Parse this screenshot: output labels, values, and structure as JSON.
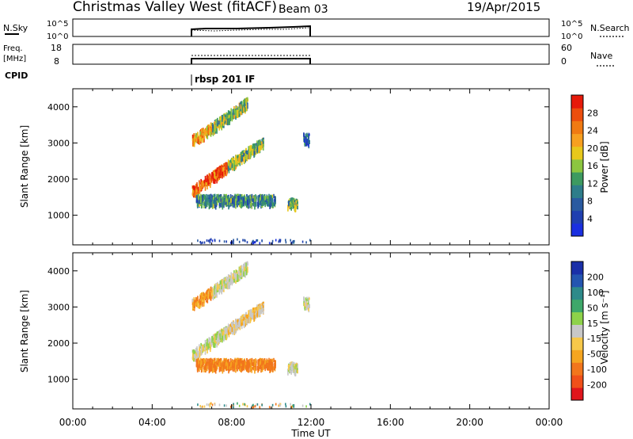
{
  "header": {
    "station": "Christmas Valley West (fitACF)",
    "beam": "Beam 03",
    "date": "19/Apr/2015"
  },
  "noise_panel": {
    "left_label": "N.Sky",
    "right_label": "N.Search",
    "ticks_left": [
      "10^5",
      "10^0"
    ],
    "ticks_right": [
      "10^5",
      "10^0"
    ]
  },
  "freq_panel": {
    "left_label_1": "Freq.",
    "left_label_2": "[MHz]",
    "right_label": "Nave",
    "ticks_left": [
      "18",
      "8"
    ],
    "ticks_right": [
      "60",
      "0"
    ]
  },
  "cpid": {
    "label": "CPID",
    "value": "rbsp 201 IF"
  },
  "colors": {
    "power_scale": [
      "#1a2fe0",
      "#1f3fb0",
      "#2a5aa0",
      "#2e7d8a",
      "#3d9a60",
      "#8cc640",
      "#e8c81c",
      "#f7a020",
      "#f07a12",
      "#ec4e0e",
      "#e61a0a"
    ],
    "velocity_scale": [
      "#e0151c",
      "#f0501a",
      "#f2761c",
      "#f5a520",
      "#f7c84a",
      "#c8c8c8",
      "#8ed24a",
      "#3ea86a",
      "#2e8a8a",
      "#2455b0",
      "#1a2fa8"
    ]
  },
  "chart_data": [
    {
      "type": "heatmap",
      "title": "",
      "xlabel": "Time UT",
      "ylabel": "Slant Range [km]",
      "colorbar_label": "Power [dB]",
      "colorbar_ticks": [
        "4",
        "8",
        "12",
        "16",
        "20",
        "24",
        "28"
      ],
      "x_ticks": [
        "00:00",
        "04:00",
        "08:00",
        "12:00",
        "16:00",
        "20:00",
        "00:00"
      ],
      "y_ticks": [
        "1000",
        "2000",
        "3000",
        "4000"
      ],
      "xlim_hours": [
        0,
        24
      ],
      "ylim_km": [
        180,
        4500
      ],
      "data_time_range_hours": [
        6,
        12
      ],
      "echo_bands": [
        {
          "start_time_h": 6.0,
          "end_time_h": 7.8,
          "start_range_km": 1650,
          "end_range_km": 2350,
          "power_db": 26
        },
        {
          "start_time_h": 7.8,
          "end_time_h": 9.6,
          "start_range_km": 2350,
          "end_range_km": 3000,
          "power_db": 14
        },
        {
          "start_time_h": 6.0,
          "end_time_h": 7.0,
          "start_range_km": 3050,
          "end_range_km": 3400,
          "power_db": 22
        },
        {
          "start_time_h": 7.0,
          "end_time_h": 8.8,
          "start_range_km": 3400,
          "end_range_km": 4100,
          "power_db": 14
        },
        {
          "start_time_h": 6.2,
          "end_time_h": 10.2,
          "start_range_km": 1400,
          "end_range_km": 1400,
          "power_db": 10
        },
        {
          "start_time_h": 10.8,
          "end_time_h": 11.3,
          "start_range_km": 1300,
          "end_range_km": 1300,
          "power_db": 14
        },
        {
          "start_time_h": 11.6,
          "end_time_h": 11.9,
          "start_range_km": 3100,
          "end_range_km": 3100,
          "power_db": 6
        }
      ]
    },
    {
      "type": "heatmap",
      "title": "",
      "xlabel": "Time UT",
      "ylabel": "Slant Range [km]",
      "colorbar_label": "Velocity [m s⁻¹]",
      "colorbar_ticks": [
        "-200",
        "-100",
        "-50",
        "-15",
        "15",
        "50",
        "100",
        "200"
      ],
      "x_ticks": [
        "00:00",
        "04:00",
        "08:00",
        "12:00",
        "16:00",
        "20:00",
        "00:00"
      ],
      "y_ticks": [
        "1000",
        "2000",
        "3000",
        "4000"
      ],
      "xlim_hours": [
        0,
        24
      ],
      "ylim_km": [
        180,
        4500
      ],
      "data_time_range_hours": [
        6,
        12
      ],
      "echo_bands": [
        {
          "start_time_h": 6.0,
          "end_time_h": 7.8,
          "start_range_km": 1650,
          "end_range_km": 2350,
          "velocity_ms": 0
        },
        {
          "start_time_h": 7.8,
          "end_time_h": 9.6,
          "start_range_km": 2350,
          "end_range_km": 3000,
          "velocity_ms": -20
        },
        {
          "start_time_h": 6.0,
          "end_time_h": 7.0,
          "start_range_km": 3050,
          "end_range_km": 3400,
          "velocity_ms": -40
        },
        {
          "start_time_h": 7.0,
          "end_time_h": 8.8,
          "start_range_km": 3400,
          "end_range_km": 4100,
          "velocity_ms": 0
        },
        {
          "start_time_h": 6.2,
          "end_time_h": 10.2,
          "start_range_km": 1400,
          "end_range_km": 1400,
          "velocity_ms": -60
        },
        {
          "start_time_h": 10.8,
          "end_time_h": 11.3,
          "start_range_km": 1300,
          "end_range_km": 1300,
          "velocity_ms": 0
        },
        {
          "start_time_h": 11.6,
          "end_time_h": 11.9,
          "start_range_km": 3100,
          "end_range_km": 3100,
          "velocity_ms": 0
        }
      ]
    }
  ]
}
